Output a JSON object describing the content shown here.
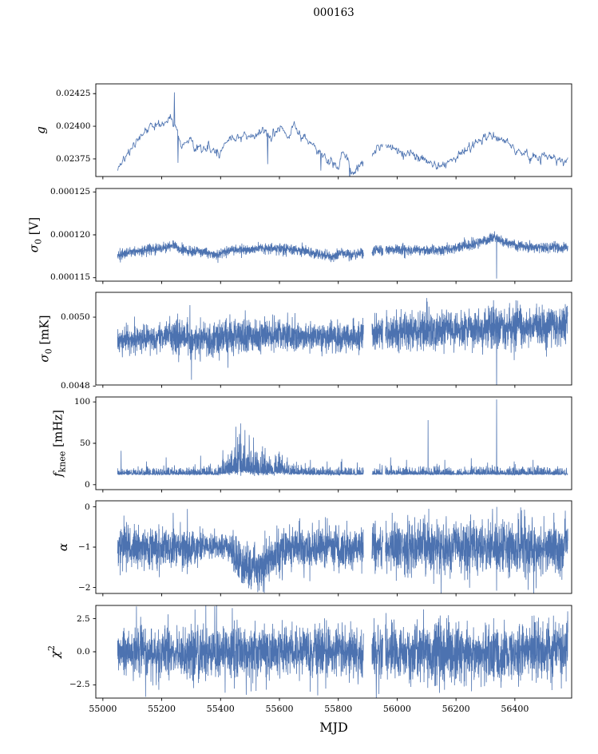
{
  "chart_data": {
    "type": "line",
    "title": "000163",
    "xlabel": "MJD",
    "line_color": "#4C72B0",
    "axis_color": "#000000",
    "legend": "none",
    "grid": false,
    "seed": 20163,
    "xlim": [
      54976,
      56593
    ],
    "x_start": 55050,
    "x_end": 56580,
    "xticks": [
      55000,
      55200,
      55400,
      55600,
      55800,
      56000,
      56200,
      56400
    ],
    "gaps": [
      [
        55886,
        55914
      ],
      [
        55952,
        55960
      ]
    ],
    "panels": [
      {
        "name": "g",
        "ylabel": {
          "pre": "g",
          "sub": "",
          "sup": "",
          "post": ""
        },
        "ylim": [
          0.023615,
          0.024325
        ],
        "yticks": [
          {
            "v": 0.02375,
            "label": "0.02375"
          },
          {
            "v": 0.024,
            "label": "0.02400"
          },
          {
            "v": 0.02425,
            "label": "0.02425"
          }
        ],
        "points": 1000,
        "ar": 0.55,
        "skew": 0,
        "trend": [
          [
            55050,
            0.02366
          ],
          [
            55080,
            0.02378
          ],
          [
            55120,
            0.0239
          ],
          [
            55160,
            0.024
          ],
          [
            55200,
            0.02402
          ],
          [
            55235,
            0.02408
          ],
          [
            55250,
            0.02398
          ],
          [
            55265,
            0.02382
          ],
          [
            55285,
            0.0239
          ],
          [
            55310,
            0.02386
          ],
          [
            55340,
            0.02384
          ],
          [
            55370,
            0.02382
          ],
          [
            55395,
            0.02377
          ],
          [
            55420,
            0.02388
          ],
          [
            55450,
            0.02392
          ],
          [
            55480,
            0.02392
          ],
          [
            55510,
            0.02394
          ],
          [
            55540,
            0.02398
          ],
          [
            55570,
            0.02391
          ],
          [
            55600,
            0.02399
          ],
          [
            55630,
            0.02394
          ],
          [
            55650,
            0.02398
          ],
          [
            55680,
            0.0239
          ],
          [
            55710,
            0.02386
          ],
          [
            55740,
            0.0238
          ],
          [
            55770,
            0.02374
          ],
          [
            55800,
            0.02368
          ],
          [
            55815,
            0.0238
          ],
          [
            55830,
            0.02376
          ],
          [
            55845,
            0.02364
          ],
          [
            55870,
            0.0237
          ],
          [
            55900,
            0.02373
          ],
          [
            55930,
            0.02383
          ],
          [
            55960,
            0.02386
          ],
          [
            55990,
            0.02382
          ],
          [
            56020,
            0.0238
          ],
          [
            56060,
            0.02378
          ],
          [
            56100,
            0.02372
          ],
          [
            56140,
            0.0237
          ],
          [
            56180,
            0.02372
          ],
          [
            56220,
            0.02378
          ],
          [
            56260,
            0.02386
          ],
          [
            56300,
            0.02392
          ],
          [
            56340,
            0.02392
          ],
          [
            56380,
            0.02386
          ],
          [
            56420,
            0.0238
          ],
          [
            56450,
            0.02376
          ],
          [
            56480,
            0.02377
          ],
          [
            56580,
            0.02374
          ]
        ],
        "noise": [
          [
            55050,
            1.8e-05
          ],
          [
            56580,
            1.8e-05
          ]
        ],
        "spikes": [
          [
            55243,
            0.02426
          ],
          [
            55255,
            0.02372
          ],
          [
            55560,
            0.02371
          ],
          [
            55740,
            0.02366
          ],
          [
            55838,
            0.02357
          ]
        ]
      },
      {
        "name": "sigma0-V",
        "ylabel": {
          "pre": "σ",
          "sub": "0",
          "sup": "",
          "post": " [V]"
        },
        "ylim": [
          0.0001146,
          0.0001254
        ],
        "yticks": [
          {
            "v": 0.000115,
            "label": "0.000115"
          },
          {
            "v": 0.00012,
            "label": "0.000120"
          },
          {
            "v": 0.000125,
            "label": "0.000125"
          }
        ],
        "points": 3200,
        "ar": 0,
        "skew": 0,
        "trend": [
          [
            55050,
            0.0001176
          ],
          [
            55100,
            0.000118
          ],
          [
            55150,
            0.0001183
          ],
          [
            55200,
            0.0001184
          ],
          [
            55240,
            0.0001188
          ],
          [
            55260,
            0.0001183
          ],
          [
            55300,
            0.0001181
          ],
          [
            55350,
            0.000118
          ],
          [
            55390,
            0.0001176
          ],
          [
            55420,
            0.0001181
          ],
          [
            55450,
            0.0001183
          ],
          [
            55500,
            0.0001183
          ],
          [
            55550,
            0.0001184
          ],
          [
            55600,
            0.0001184
          ],
          [
            55650,
            0.0001183
          ],
          [
            55700,
            0.000118
          ],
          [
            55750,
            0.0001177
          ],
          [
            55790,
            0.0001174
          ],
          [
            55810,
            0.000118
          ],
          [
            55840,
            0.0001176
          ],
          [
            55870,
            0.0001178
          ],
          [
            55900,
            0.000118
          ],
          [
            55950,
            0.0001183
          ],
          [
            56000,
            0.0001183
          ],
          [
            56050,
            0.0001182
          ],
          [
            56100,
            0.0001182
          ],
          [
            56150,
            0.0001183
          ],
          [
            56200,
            0.0001185
          ],
          [
            56250,
            0.0001188
          ],
          [
            56300,
            0.0001193
          ],
          [
            56330,
            0.0001198
          ],
          [
            56360,
            0.0001192
          ],
          [
            56400,
            0.0001188
          ],
          [
            56450,
            0.0001186
          ],
          [
            56580,
            0.0001185
          ]
        ],
        "noise": [
          [
            55050,
            3e-07
          ],
          [
            56580,
            3e-07
          ]
        ],
        "spikes": [
          [
            56338,
            0.0001149
          ]
        ]
      },
      {
        "name": "sigma0-mK",
        "ylabel": {
          "pre": "σ",
          "sub": "0",
          "sup": "",
          "post": " [mK]"
        },
        "ylim": [
          0.004803,
          0.005072
        ],
        "yticks": [
          {
            "v": 0.0048,
            "label": "0.0048"
          },
          {
            "v": 0.005,
            "label": "0.0050"
          }
        ],
        "points": 3200,
        "ar": 0,
        "skew": 0,
        "trend": [
          [
            55050,
            0.004935
          ],
          [
            55150,
            0.004938
          ],
          [
            55240,
            0.004945
          ],
          [
            55290,
            0.00494
          ],
          [
            55310,
            0.00493
          ],
          [
            55330,
            0.004942
          ],
          [
            55400,
            0.004935
          ],
          [
            55430,
            0.004945
          ],
          [
            55500,
            0.004945
          ],
          [
            55600,
            0.004948
          ],
          [
            55700,
            0.004942
          ],
          [
            55800,
            0.00494
          ],
          [
            55900,
            0.00495
          ],
          [
            56000,
            0.004958
          ],
          [
            56100,
            0.00496
          ],
          [
            56200,
            0.004962
          ],
          [
            56300,
            0.004965
          ],
          [
            56400,
            0.004972
          ],
          [
            56580,
            0.004975
          ]
        ],
        "noise": [
          [
            55050,
            1.8e-05
          ],
          [
            55200,
            2e-05
          ],
          [
            55250,
            2.6e-05
          ],
          [
            55330,
            2.2e-05
          ],
          [
            55420,
            2.6e-05
          ],
          [
            55500,
            2.4e-05
          ],
          [
            55700,
            2e-05
          ],
          [
            55900,
            2.2e-05
          ],
          [
            56050,
            2.8e-05
          ],
          [
            56200,
            2.8e-05
          ],
          [
            56350,
            3e-05
          ],
          [
            56580,
            2.8e-05
          ]
        ],
        "spikes": [
          [
            55296,
            0.005035
          ],
          [
            55301,
            0.004818
          ],
          [
            55425,
            0.004853
          ],
          [
            56102,
            0.005045
          ],
          [
            56338,
            0.004768
          ]
        ]
      },
      {
        "name": "fknee",
        "ylabel": {
          "pre": "f",
          "sub": "knee",
          "sup": "",
          "post": " [mHz]"
        },
        "ylim": [
          -6,
          106
        ],
        "yticks": [
          {
            "v": 0,
            "label": "0"
          },
          {
            "v": 50,
            "label": "50"
          },
          {
            "v": 100,
            "label": "100"
          }
        ],
        "points": 3200,
        "ar": 0,
        "skew": 0.55,
        "trend": [
          [
            55050,
            13
          ],
          [
            55380,
            13
          ],
          [
            55420,
            15
          ],
          [
            55450,
            17
          ],
          [
            55480,
            18
          ],
          [
            55520,
            16
          ],
          [
            55560,
            15
          ],
          [
            55600,
            16
          ],
          [
            55650,
            14
          ],
          [
            55700,
            13
          ],
          [
            56580,
            13
          ]
        ],
        "noise": [
          [
            55050,
            3.2
          ],
          [
            55380,
            3.5
          ],
          [
            55415,
            7
          ],
          [
            55445,
            11
          ],
          [
            55465,
            13.5
          ],
          [
            55495,
            12
          ],
          [
            55530,
            9.5
          ],
          [
            55565,
            7.5
          ],
          [
            55600,
            8.5
          ],
          [
            55640,
            5.5
          ],
          [
            55680,
            4
          ],
          [
            55720,
            3.2
          ],
          [
            56580,
            3.2
          ]
        ],
        "spikes": [
          [
            55062,
            41
          ],
          [
            55148,
            28
          ],
          [
            55215,
            33
          ],
          [
            55332,
            35
          ],
          [
            55452,
            70
          ],
          [
            55468,
            74
          ],
          [
            55483,
            66
          ],
          [
            55497,
            60
          ],
          [
            55512,
            57
          ],
          [
            55705,
            30
          ],
          [
            55762,
            28
          ],
          [
            55812,
            31
          ],
          [
            55978,
            33
          ],
          [
            56032,
            30
          ],
          [
            56105,
            78
          ],
          [
            56162,
            30
          ],
          [
            56252,
            32
          ],
          [
            56338,
            103
          ],
          [
            56398,
            28
          ],
          [
            56462,
            30
          ]
        ]
      },
      {
        "name": "alpha",
        "ylabel": {
          "pre": "α",
          "sub": "",
          "sup": "",
          "post": ""
        },
        "ylim": [
          -2.15,
          0.15
        ],
        "yticks": [
          {
            "v": 0,
            "label": "0"
          },
          {
            "v": -1,
            "label": "−1"
          },
          {
            "v": -2,
            "label": "−2"
          }
        ],
        "points": 3200,
        "ar": 0,
        "skew": 0,
        "trend": [
          [
            55050,
            -1.02
          ],
          [
            55320,
            -1.0
          ],
          [
            55340,
            -0.97
          ],
          [
            55420,
            -0.97
          ],
          [
            55445,
            -1.2
          ],
          [
            55470,
            -1.45
          ],
          [
            55520,
            -1.5
          ],
          [
            55555,
            -1.4
          ],
          [
            55585,
            -1.15
          ],
          [
            55620,
            -1.05
          ],
          [
            55680,
            -1.0
          ],
          [
            56580,
            -1.0
          ]
        ],
        "noise": [
          [
            55050,
            0.26
          ],
          [
            55310,
            0.26
          ],
          [
            55340,
            0.16
          ],
          [
            55420,
            0.16
          ],
          [
            55450,
            0.27
          ],
          [
            55560,
            0.28
          ],
          [
            55600,
            0.26
          ],
          [
            55895,
            0.25
          ],
          [
            55915,
            0.32
          ],
          [
            56580,
            0.32
          ]
        ],
        "spikes": [
          [
            55505,
            -1.97
          ],
          [
            56338,
            -2.08
          ]
        ]
      },
      {
        "name": "chi2",
        "ylabel": {
          "pre": "χ",
          "sub": "",
          "sup": "2",
          "post": ""
        },
        "ylim": [
          -3.5,
          3.5
        ],
        "yticks": [
          {
            "v": 2.5,
            "label": "2.5"
          },
          {
            "v": 0.0,
            "label": "0.0"
          },
          {
            "v": -2.5,
            "label": "−2.5"
          }
        ],
        "points": 3200,
        "ar": 0,
        "skew": 0,
        "trend": [
          [
            55050,
            0
          ],
          [
            56580,
            0
          ]
        ],
        "noise": [
          [
            55050,
            0.95
          ],
          [
            55900,
            0.95
          ],
          [
            55920,
            1.05
          ],
          [
            56580,
            1.05
          ]
        ],
        "spikes": [
          [
            55440,
            3.3
          ],
          [
            55730,
            -3.3
          ],
          [
            56090,
            3.2
          ]
        ]
      }
    ]
  }
}
